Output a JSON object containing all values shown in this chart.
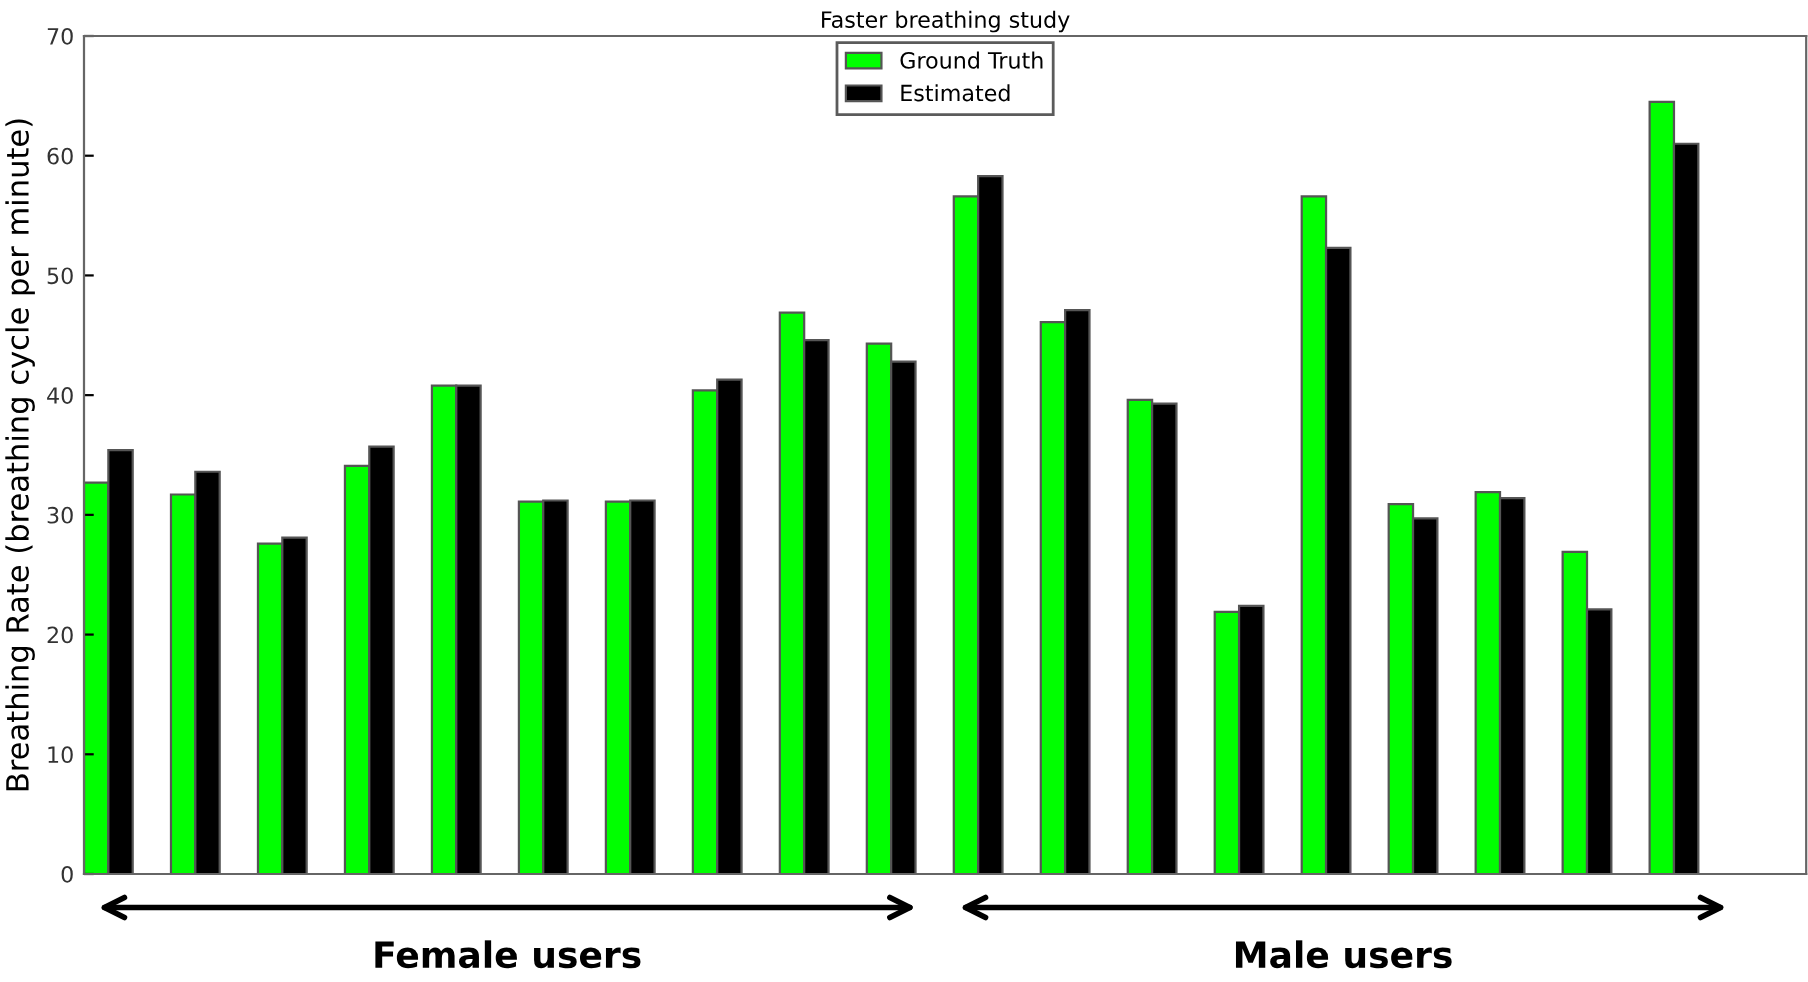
{
  "chart_data": {
    "type": "bar",
    "title": "Faster breathing study",
    "ylabel": "Breathing Rate (breathing cycle per minute)",
    "categories": [
      null,
      null,
      null,
      null,
      null,
      null,
      null,
      null,
      null,
      null,
      null,
      null,
      null,
      null,
      null,
      null,
      null,
      null,
      null
    ],
    "series": [
      {
        "name": "Ground Truth",
        "color": "#00ff00",
        "values": [
          32.7,
          31.7,
          27.6,
          34.1,
          40.8,
          31.1,
          31.1,
          40.4,
          46.9,
          44.3,
          56.6,
          46.1,
          39.6,
          21.9,
          56.6,
          30.9,
          31.9,
          26.9,
          64.5
        ]
      },
      {
        "name": "Estimated",
        "color": "#000000",
        "values": [
          35.4,
          33.6,
          28.1,
          35.7,
          40.8,
          31.2,
          31.2,
          41.3,
          44.6,
          42.8,
          58.3,
          47.1,
          39.3,
          22.4,
          52.3,
          29.7,
          31.4,
          22.1,
          61.0
        ]
      }
    ],
    "ylim": [
      0,
      70
    ],
    "yticks": [
      0,
      10,
      20,
      30,
      40,
      50,
      60,
      70
    ],
    "grid": false,
    "legend": "top",
    "annotations": [
      "Female users",
      "Male users"
    ]
  }
}
